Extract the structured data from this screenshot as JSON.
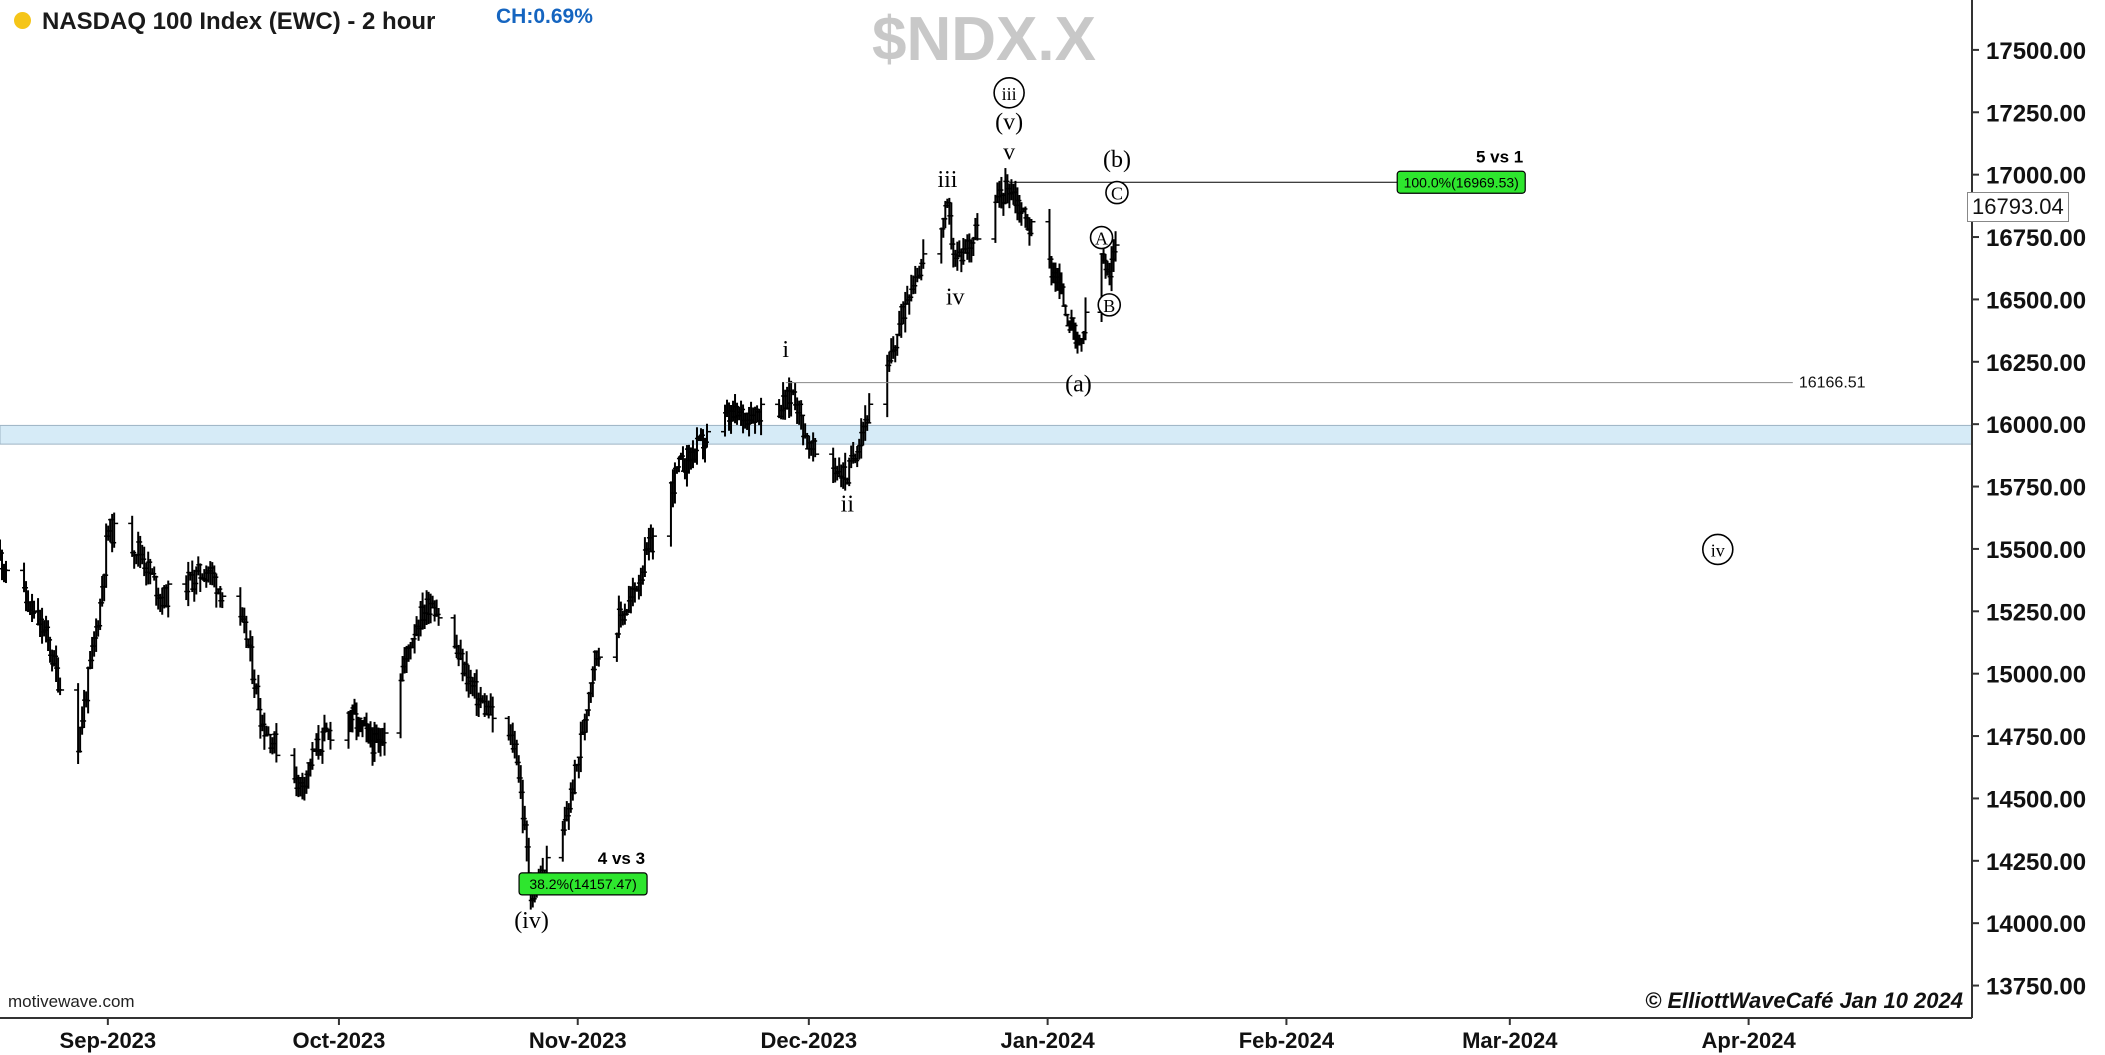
{
  "header": {
    "title": "NASDAQ 100 Index (EWC) - 2 hour",
    "change": "CH:0.69%",
    "status_dot_color": "#f5c518",
    "symbol": "$NDX.X"
  },
  "footer": {
    "source": "motivewave.com",
    "copyright": "© ElliottWaveCafé Jan 10 2024"
  },
  "last_price": "16793.04",
  "colors": {
    "bars": "#000000",
    "fib_box": "#2ee62e",
    "support_zone": "#d6ebf7",
    "grid_axis": "#333333"
  },
  "chart_data": {
    "type": "ohlc",
    "title": "NASDAQ 100 Index (EWC) - 2 hour",
    "ylim": [
      13620,
      17700
    ],
    "x_ticks": [
      "Sep-2023",
      "Oct-2023",
      "Nov-2023",
      "Dec-2023",
      "Jan-2024",
      "Feb-2024",
      "Mar-2024",
      "Apr-2024"
    ],
    "y_ticks": [
      13750,
      14000,
      14250,
      14500,
      14750,
      15000,
      15250,
      15500,
      15750,
      16000,
      16250,
      16500,
      16750,
      17000,
      17250,
      17500
    ],
    "y_tick_labels": [
      "13750.00",
      "14000.00",
      "14250.00",
      "14500.00",
      "14750.00",
      "15000.00",
      "15250.00",
      "15500.00",
      "15750.00",
      "16000.00",
      "16250.00",
      "16500.00",
      "16750.00",
      "17000.00",
      "17250.00",
      "17500.00"
    ],
    "price_path": [
      {
        "date": "2023-08-18",
        "close": 15470
      },
      {
        "date": "2023-08-24",
        "close": 15150
      },
      {
        "date": "2023-08-28",
        "close": 14700
      },
      {
        "date": "2023-08-31",
        "close": 15280
      },
      {
        "date": "2023-09-01",
        "close": 15580
      },
      {
        "date": "2023-09-05",
        "close": 15500
      },
      {
        "date": "2023-09-08",
        "close": 15300
      },
      {
        "date": "2023-09-14",
        "close": 15420
      },
      {
        "date": "2023-09-19",
        "close": 15150
      },
      {
        "date": "2023-09-21",
        "close": 14800
      },
      {
        "date": "2023-09-26",
        "close": 14550
      },
      {
        "date": "2023-09-28",
        "close": 14700
      },
      {
        "date": "2023-10-02",
        "close": 14850
      },
      {
        "date": "2023-10-06",
        "close": 14700
      },
      {
        "date": "2023-10-11",
        "close": 15200
      },
      {
        "date": "2023-10-13",
        "close": 15300
      },
      {
        "date": "2023-10-19",
        "close": 14900
      },
      {
        "date": "2023-10-24",
        "close": 14700
      },
      {
        "date": "2023-10-26",
        "close": 14100
      },
      {
        "date": "2023-10-30",
        "close": 14350
      },
      {
        "date": "2023-11-01",
        "close": 14650
      },
      {
        "date": "2023-11-03",
        "close": 15050
      },
      {
        "date": "2023-11-08",
        "close": 15300
      },
      {
        "date": "2023-11-10",
        "close": 15480
      },
      {
        "date": "2023-11-14",
        "close": 15820
      },
      {
        "date": "2023-11-20",
        "close": 16020
      },
      {
        "date": "2023-11-28",
        "close": 16080
      },
      {
        "date": "2023-11-29",
        "close": 16140
      },
      {
        "date": "2023-12-01",
        "close": 15900
      },
      {
        "date": "2023-12-06",
        "close": 15790
      },
      {
        "date": "2023-12-08",
        "close": 16000
      },
      {
        "date": "2023-12-11",
        "close": 16180
      },
      {
        "date": "2023-12-14",
        "close": 16550
      },
      {
        "date": "2023-12-19",
        "close": 16850
      },
      {
        "date": "2023-12-20",
        "close": 16650
      },
      {
        "date": "2023-12-27",
        "close": 16960
      },
      {
        "date": "2023-12-29",
        "close": 16830
      },
      {
        "date": "2024-01-02",
        "close": 16600
      },
      {
        "date": "2024-01-05",
        "close": 16290
      },
      {
        "date": "2024-01-08",
        "close": 16680
      },
      {
        "date": "2024-01-09",
        "close": 16560
      },
      {
        "date": "2024-01-10",
        "close": 16793
      }
    ],
    "lines": [
      {
        "label": "16166.51",
        "price": 16166.51,
        "from": "2023-11-28",
        "to": "2024-04-07"
      },
      {
        "label": "100.0%(16969.53)",
        "price": 16969.53,
        "from": "2023-12-27",
        "to": "2024-03-03",
        "callout": "5 vs 1"
      },
      {
        "label": "38.2%(14157.47)",
        "price": 14157.47,
        "from": "2023-10-26",
        "to": "2023-11-10",
        "callout": "4 vs 3"
      }
    ],
    "zone": {
      "from_price": 15920,
      "to_price": 15995
    },
    "wave_labels": [
      {
        "text": "iii",
        "circled": true,
        "date": "2023-12-27",
        "price": 17300
      },
      {
        "text": "(v)",
        "date": "2023-12-27",
        "price": 17180
      },
      {
        "text": "v",
        "date": "2023-12-27",
        "price": 17060
      },
      {
        "text": "iii",
        "date": "2023-12-19",
        "price": 16950
      },
      {
        "text": "iv",
        "date": "2023-12-20",
        "price": 16480
      },
      {
        "text": "i",
        "date": "2023-11-28",
        "price": 16270
      },
      {
        "text": "ii",
        "date": "2023-12-06",
        "price": 15650
      },
      {
        "text": "(iv)",
        "date": "2023-10-26",
        "price": 13980
      },
      {
        "text": "(a)",
        "date": "2024-01-05",
        "price": 16130
      },
      {
        "text": "(b)",
        "date": "2024-01-10",
        "price": 17030
      },
      {
        "text": "C",
        "circled": true,
        "date": "2024-01-10",
        "price": 16900
      },
      {
        "text": "A",
        "circled": true,
        "date": "2024-01-08",
        "price": 16720
      },
      {
        "text": "B",
        "circled": true,
        "date": "2024-01-09",
        "price": 16450
      },
      {
        "text": "iv",
        "circled": true,
        "date": "2024-03-28",
        "price": 15470
      }
    ]
  }
}
